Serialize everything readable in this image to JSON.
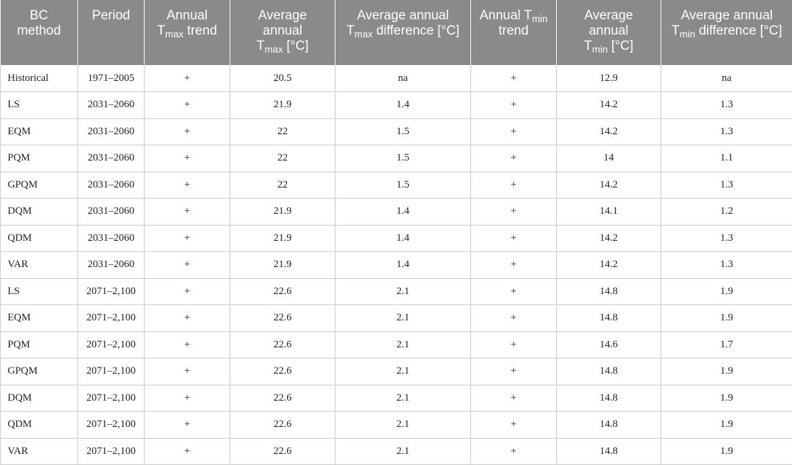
{
  "headers": {
    "col1_line1": "BC",
    "col1_line2": "method",
    "col2": "Period",
    "col3_line1": "Annual",
    "col3_t": "T",
    "col3_sub": "max",
    "col3_rest": " trend",
    "col4_line1": "Average",
    "col4_line2": "annual",
    "col4_t": "T",
    "col4_sub": "max",
    "col4_unit": " [°C]",
    "col5_line1": "Average annual",
    "col5_t": "T",
    "col5_sub": "max",
    "col5_rest": " difference [°C]",
    "col6_line1a": "Annual T",
    "col6_sub": "min",
    "col6_line2": "trend",
    "col7_line1": "Average",
    "col7_line2": "annual",
    "col7_t": "T",
    "col7_sub": "min",
    "col7_unit": " [°C]",
    "col8_line1": "Average annual",
    "col8_t": "T",
    "col8_sub": "min",
    "col8_rest": " difference [°C]"
  },
  "rows": [
    [
      "Historical",
      "1971–2005",
      "+",
      "20.5",
      "na",
      "+",
      "12.9",
      "na"
    ],
    [
      "LS",
      "2031–2060",
      "+",
      "21.9",
      "1.4",
      "+",
      "14.2",
      "1.3"
    ],
    [
      "EQM",
      "2031–2060",
      "+",
      "22",
      "1.5",
      "+",
      "14.2",
      "1.3"
    ],
    [
      "PQM",
      "2031–2060",
      "+",
      "22",
      "1.5",
      "+",
      "14",
      "1.1"
    ],
    [
      "GPQM",
      "2031–2060",
      "+",
      "22",
      "1.5",
      "+",
      "14.2",
      "1.3"
    ],
    [
      "DQM",
      "2031–2060",
      "+",
      "21.9",
      "1.4",
      "+",
      "14.1",
      "1.2"
    ],
    [
      "QDM",
      "2031–2060",
      "+",
      "21.9",
      "1.4",
      "+",
      "14.2",
      "1.3"
    ],
    [
      "VAR",
      "2031–2060",
      "+",
      "21.9",
      "1.4",
      "+",
      "14.2",
      "1.3"
    ],
    [
      "LS",
      "2071–2,100",
      "+",
      "22.6",
      "2.1",
      "+",
      "14.8",
      "1.9"
    ],
    [
      "EQM",
      "2071–2,100",
      "+",
      "22.6",
      "2.1",
      "+",
      "14.8",
      "1.9"
    ],
    [
      "PQM",
      "2071–2,100",
      "+",
      "22.6",
      "2.1",
      "+",
      "14.6",
      "1.7"
    ],
    [
      "GPQM",
      "2071–2,100",
      "+",
      "22.6",
      "2.1",
      "+",
      "14.8",
      "1.9"
    ],
    [
      "DQM",
      "2071–2,100",
      "+",
      "22.6",
      "2.1",
      "+",
      "14.8",
      "1.9"
    ],
    [
      "QDM",
      "2071–2,100",
      "+",
      "22.6",
      "2.1",
      "+",
      "14.8",
      "1.9"
    ],
    [
      "VAR",
      "2071–2,100",
      "+",
      "22.6",
      "2.1",
      "+",
      "14.8",
      "1.9"
    ]
  ]
}
